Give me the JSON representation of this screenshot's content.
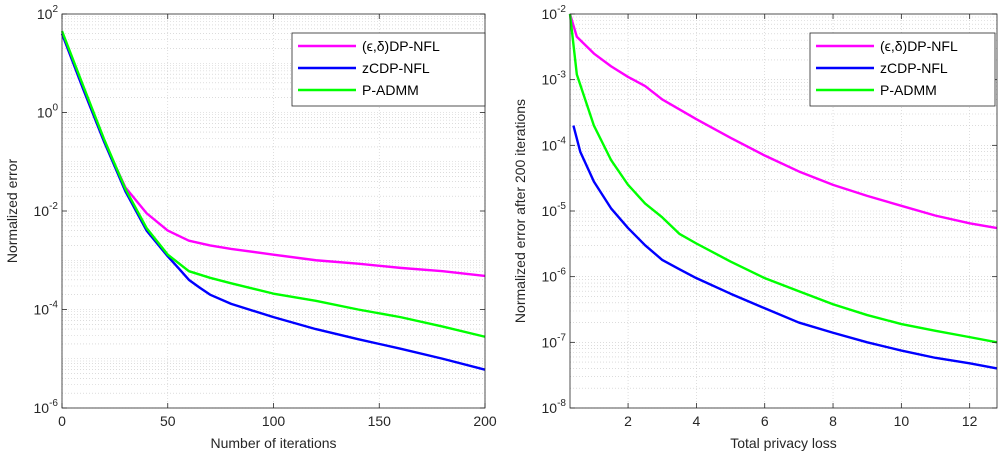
{
  "chart_data": [
    {
      "type": "line",
      "xlabel": "Number of iterations",
      "ylabel": "Normalized error",
      "xlim": [
        0,
        200
      ],
      "ylim": [
        1e-06,
        100
      ],
      "y_scale": "log",
      "grid": "on (major + minor, dotted)",
      "legend_position": "top-right",
      "x_ticks": [
        0,
        50,
        100,
        150,
        200
      ],
      "y_ticks": [
        {
          "value": 100,
          "base": "10",
          "exp": "2"
        },
        {
          "value": 1,
          "base": "10",
          "exp": "0"
        },
        {
          "value": 0.01,
          "base": "10",
          "exp": "-2"
        },
        {
          "value": 0.0001,
          "base": "10",
          "exp": "-4"
        },
        {
          "value": 1e-06,
          "base": "10",
          "exp": "-6"
        }
      ],
      "series": [
        {
          "name": "(ϵ,δ)DP-NFL",
          "color": "#ff00ff",
          "x": [
            0,
            10,
            20,
            30,
            40,
            50,
            60,
            70,
            80,
            100,
            120,
            140,
            160,
            180,
            200
          ],
          "y": [
            40,
            3,
            0.25,
            0.03,
            0.009,
            0.004,
            0.0025,
            0.002,
            0.0017,
            0.0013,
            0.001,
            0.00085,
            0.0007,
            0.0006,
            0.00048
          ]
        },
        {
          "name": "zCDP-NFL",
          "color": "#0000ff",
          "x": [
            0,
            10,
            20,
            30,
            40,
            50,
            55,
            60,
            65,
            70,
            80,
            100,
            120,
            140,
            160,
            180,
            200
          ],
          "y": [
            40,
            3,
            0.25,
            0.025,
            0.004,
            0.0012,
            0.0007,
            0.0004,
            0.00028,
            0.0002,
            0.00013,
            7e-05,
            4e-05,
            2.5e-05,
            1.6e-05,
            1e-05,
            6e-06
          ]
        },
        {
          "name": "P-ADMM",
          "color": "#00ff00",
          "x": [
            0,
            10,
            20,
            30,
            40,
            50,
            60,
            70,
            80,
            100,
            120,
            140,
            160,
            180,
            200
          ],
          "y": [
            45,
            3.5,
            0.28,
            0.028,
            0.0045,
            0.0013,
            0.0006,
            0.00044,
            0.00034,
            0.00021,
            0.00015,
            0.0001,
            7e-05,
            4.5e-05,
            2.8e-05
          ]
        }
      ]
    },
    {
      "type": "line",
      "xlabel": "Total privacy loss",
      "ylabel": "Normalized error after 200 iterations",
      "xlim": [
        0.3,
        12.8
      ],
      "ylim": [
        1e-08,
        0.01
      ],
      "y_scale": "log",
      "grid": "on (major + minor, dotted)",
      "legend_position": "top-right",
      "x_ticks": [
        2,
        4,
        6,
        8,
        10,
        12
      ],
      "y_ticks": [
        {
          "value": 0.01,
          "base": "10",
          "exp": "-2"
        },
        {
          "value": 0.001,
          "base": "10",
          "exp": "-3"
        },
        {
          "value": 0.0001,
          "base": "10",
          "exp": "-4"
        },
        {
          "value": 1e-05,
          "base": "10",
          "exp": "-5"
        },
        {
          "value": 1e-06,
          "base": "10",
          "exp": "-6"
        },
        {
          "value": 1e-07,
          "base": "10",
          "exp": "-7"
        },
        {
          "value": 1e-08,
          "base": "10",
          "exp": "-8"
        }
      ],
      "series": [
        {
          "name": "(ϵ,δ)DP-NFL",
          "color": "#ff00ff",
          "x": [
            0.3,
            0.5,
            1,
            1.5,
            2,
            2.5,
            3,
            4,
            5,
            6,
            7,
            8,
            9,
            10,
            11,
            12,
            12.8
          ],
          "y": [
            0.01,
            0.0045,
            0.0025,
            0.0016,
            0.0011,
            0.0008,
            0.0005,
            0.00025,
            0.00013,
            7e-05,
            4e-05,
            2.5e-05,
            1.7e-05,
            1.2e-05,
            8.5e-06,
            6.5e-06,
            5.5e-06
          ]
        },
        {
          "name": "zCDP-NFL",
          "color": "#0000ff",
          "x": [
            0.4,
            0.6,
            1,
            1.5,
            2,
            2.5,
            3,
            3.5,
            4,
            5,
            6,
            7,
            8,
            9,
            10,
            11,
            12,
            12.8
          ],
          "y": [
            0.0002,
            8e-05,
            2.8e-05,
            1.1e-05,
            5.5e-06,
            3e-06,
            1.8e-06,
            1.3e-06,
            9.5e-07,
            5.5e-07,
            3.3e-07,
            2e-07,
            1.4e-07,
            1e-07,
            7.5e-08,
            5.8e-08,
            4.8e-08,
            4e-08
          ]
        },
        {
          "name": "P-ADMM",
          "color": "#00ff00",
          "x": [
            0.3,
            0.5,
            1,
            1.5,
            2,
            2.5,
            3,
            3.5,
            4,
            5,
            6,
            7,
            8,
            9,
            10,
            11,
            12,
            12.8
          ],
          "y": [
            0.01,
            0.0012,
            0.0002,
            6e-05,
            2.5e-05,
            1.3e-05,
            8e-06,
            4.5e-06,
            3.2e-06,
            1.7e-06,
            9.5e-07,
            6e-07,
            3.8e-07,
            2.6e-07,
            1.9e-07,
            1.5e-07,
            1.2e-07,
            1e-07
          ]
        }
      ]
    }
  ]
}
